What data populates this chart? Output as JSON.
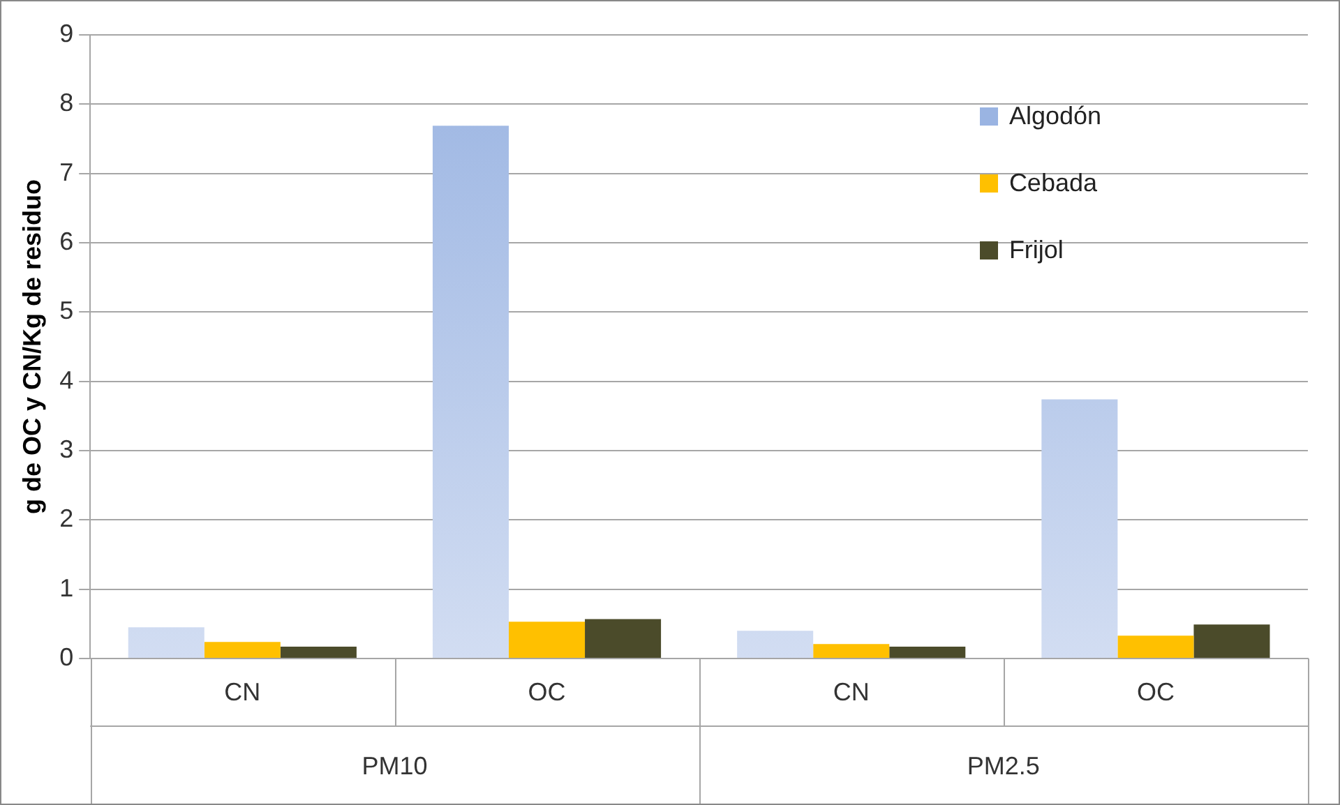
{
  "chart_data": {
    "type": "bar",
    "ylabel": "g de OC y CN/Kg de residuo",
    "categories": [
      "CN",
      "OC",
      "CN",
      "OC"
    ],
    "series": [
      {
        "name": "Algodón",
        "color": "#9ab4e2",
        "values": [
          0.45,
          7.69,
          0.4,
          3.74
        ]
      },
      {
        "name": "Cebada",
        "color": "#ffc000",
        "values": [
          0.24,
          0.53,
          0.21,
          0.33
        ]
      },
      {
        "name": "Frijol",
        "color": "#4b4b2a",
        "values": [
          0.17,
          0.57,
          0.17,
          0.49
        ]
      }
    ],
    "ylim": [
      0,
      9
    ],
    "yticks": [
      0,
      1,
      2,
      3,
      4,
      5,
      6,
      7,
      8,
      9
    ],
    "grid": "y",
    "legend": "top right",
    "annotations": [
      "PM10",
      "PM2.5"
    ]
  }
}
